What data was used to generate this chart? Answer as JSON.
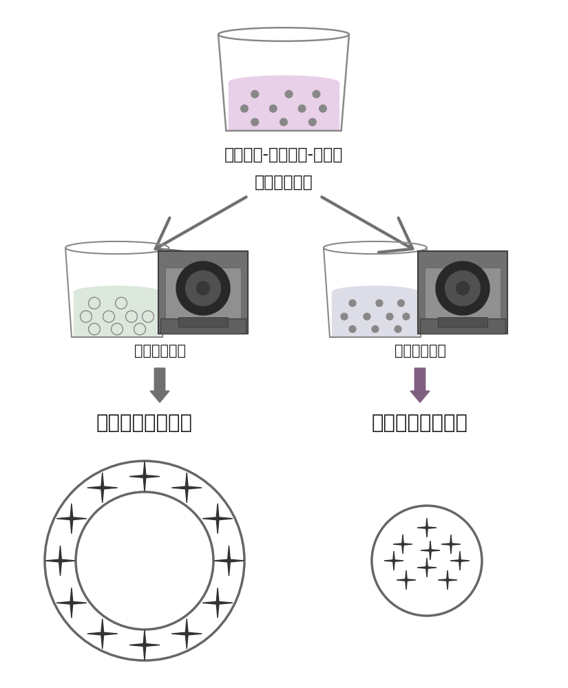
{
  "bg_color": "#ffffff",
  "text_color": "#1a1a1a",
  "arrow_color_left": "#707070",
  "arrow_color_right": "#806080",
  "beaker_color": "#aaaaaa",
  "liquid_top": "#e8d0e8",
  "liquid_left": "#dde8dd",
  "liquid_right": "#dddde8",
  "title_line1": "反应单体-荧光物质-稳定剂",
  "title_line2": "一锅煮法制备",
  "left_label": "静置分离纯化",
  "right_label": "静置分离纯化",
  "left_product": "复合荧光微米体系",
  "right_product": "复合荧光纳米体系",
  "font_size_title": 17,
  "font_size_label": 15,
  "font_size_product": 21,
  "ellipse_color": "#666666",
  "star_color": "#333333"
}
